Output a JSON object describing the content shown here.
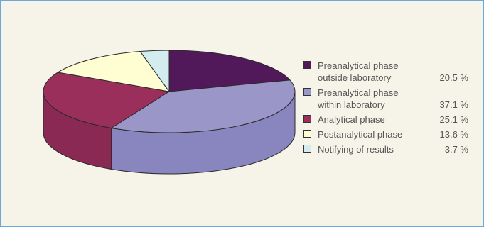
{
  "chart_data": {
    "type": "pie",
    "style": "3d",
    "slices": [
      {
        "label_lines": [
          "Preanalytical phase",
          "outside laboratory"
        ],
        "value": 20.5,
        "value_text": "20.5 %",
        "color": "#52195a",
        "side_color": "#3c1142"
      },
      {
        "label_lines": [
          "Preanalytical phase",
          "within laboratory"
        ],
        "value": 37.1,
        "value_text": "37.1 %",
        "color": "#9a96c8",
        "side_color": "#8985be"
      },
      {
        "label_lines": [
          "Analytical phase"
        ],
        "value": 25.1,
        "value_text": "25.1 %",
        "color": "#9b2f5c",
        "side_color": "#8a2a54"
      },
      {
        "label_lines": [
          "Postanalytical phase"
        ],
        "value": 13.6,
        "value_text": "13.6 %",
        "color": "#fefed2",
        "side_color": "#e8e8b8"
      },
      {
        "label_lines": [
          "Notifying of results"
        ],
        "value": 3.7,
        "value_text": "3.7 %",
        "color": "#d2ecf0",
        "side_color": "#b6d8de"
      }
    ],
    "legend_position": "right"
  }
}
